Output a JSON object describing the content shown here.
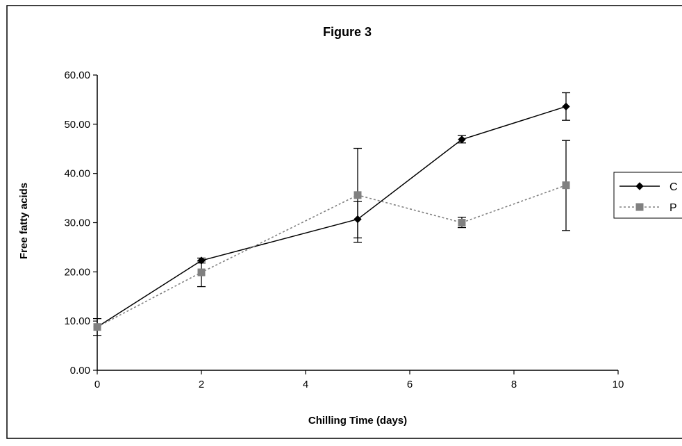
{
  "chart_data": {
    "type": "line",
    "title": "Figure 3",
    "xlabel": "Chilling Time (days)",
    "ylabel": "Free fatty acids",
    "xlim": [
      0,
      10
    ],
    "ylim": [
      0,
      60
    ],
    "xticks": [
      0,
      2,
      4,
      6,
      8,
      10
    ],
    "xtick_labels": [
      "0",
      "2",
      "4",
      "6",
      "8",
      "10"
    ],
    "yticks": [
      0,
      10,
      20,
      30,
      40,
      50,
      60
    ],
    "ytick_labels": [
      "0.00",
      "10.00",
      "20.00",
      "30.00",
      "40.00",
      "50.00",
      "60.00"
    ],
    "grid": false,
    "legend_position": "right",
    "series": [
      {
        "name": "C",
        "color": "#000000",
        "line_style": "solid",
        "marker": "diamond",
        "points": [
          {
            "x": 0,
            "y": 8.8,
            "err_low": 7.1,
            "err_high": 10.5
          },
          {
            "x": 2,
            "y": 22.3,
            "err_low": 21.8,
            "err_high": 22.8
          },
          {
            "x": 5,
            "y": 30.7,
            "err_low": 26.9,
            "err_high": 34.3
          },
          {
            "x": 7,
            "y": 46.9,
            "err_low": 46.2,
            "err_high": 47.7
          },
          {
            "x": 9,
            "y": 53.6,
            "err_low": 50.8,
            "err_high": 56.4
          }
        ]
      },
      {
        "name": "P",
        "color": "#808080",
        "line_style": "dotted",
        "marker": "square",
        "points": [
          {
            "x": 0,
            "y": 8.8,
            "err_low": 8.8,
            "err_high": 8.8
          },
          {
            "x": 2,
            "y": 19.9,
            "err_low": 17.0,
            "err_high": 22.2
          },
          {
            "x": 5,
            "y": 35.6,
            "err_low": 26.0,
            "err_high": 45.1
          },
          {
            "x": 7,
            "y": 30.0,
            "err_low": 29.0,
            "err_high": 31.1
          },
          {
            "x": 9,
            "y": 37.6,
            "err_low": 28.4,
            "err_high": 46.7
          }
        ]
      }
    ]
  }
}
